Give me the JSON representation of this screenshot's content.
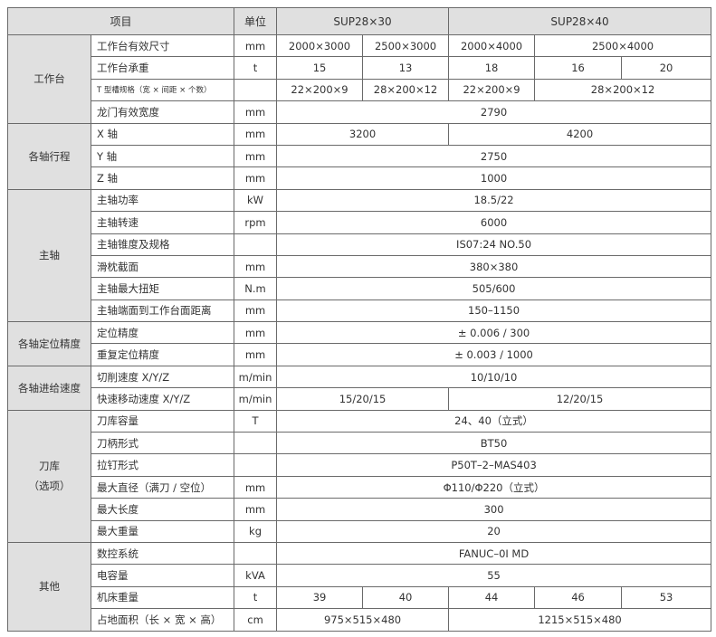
{
  "header": {
    "item": "项目",
    "unit": "单位",
    "model_a": "SUP28×30",
    "model_b": "SUP28×40"
  },
  "groups": [
    {
      "name": [
        "工作台"
      ],
      "rows": [
        {
          "label": "工作台有效尺寸",
          "unit": "mm",
          "cells": [
            {
              "v": "2000×3000",
              "span": 1
            },
            {
              "v": "2500×3000",
              "span": 1
            },
            {
              "v": "2000×4000",
              "span": 1
            },
            {
              "v": "2500×4000",
              "span": 2
            }
          ]
        },
        {
          "label": "工作台承重",
          "unit": "t",
          "cells": [
            {
              "v": "15",
              "span": 1
            },
            {
              "v": "13",
              "span": 1
            },
            {
              "v": "18",
              "span": 1
            },
            {
              "v": "16",
              "span": 1
            },
            {
              "v": "20",
              "span": 1
            }
          ]
        },
        {
          "label": "T 型槽规格（宽 × 间距 × 个数）",
          "unit": "",
          "small": true,
          "cells": [
            {
              "v": "22×200×9",
              "span": 1
            },
            {
              "v": "28×200×12",
              "span": 1
            },
            {
              "v": "22×200×9",
              "span": 1
            },
            {
              "v": "28×200×12",
              "span": 2
            }
          ]
        },
        {
          "label": "龙门有效宽度",
          "unit": "mm",
          "cells": [
            {
              "v": "2790",
              "span": 5
            }
          ]
        }
      ]
    },
    {
      "name": [
        "各轴行程"
      ],
      "rows": [
        {
          "label": "X 轴",
          "unit": "mm",
          "cells": [
            {
              "v": "3200",
              "span": 2
            },
            {
              "v": "4200",
              "span": 3
            }
          ]
        },
        {
          "label": "Y 轴",
          "unit": "mm",
          "cells": [
            {
              "v": "2750",
              "span": 5
            }
          ]
        },
        {
          "label": "Z 轴",
          "unit": "mm",
          "cells": [
            {
              "v": "1000",
              "span": 5
            }
          ]
        }
      ]
    },
    {
      "name": [
        "主轴"
      ],
      "rows": [
        {
          "label": "主轴功率",
          "unit": "kW",
          "cells": [
            {
              "v": "18.5/22",
              "span": 5
            }
          ]
        },
        {
          "label": "主轴转速",
          "unit": "rpm",
          "cells": [
            {
              "v": "6000",
              "span": 5
            }
          ]
        },
        {
          "label": "主轴锥度及规格",
          "unit": "",
          "cells": [
            {
              "v": "IS07:24  NO.50",
              "span": 5
            }
          ]
        },
        {
          "label": "滑枕截面",
          "unit": "mm",
          "cells": [
            {
              "v": "380×380",
              "span": 5
            }
          ]
        },
        {
          "label": "主轴最大扭矩",
          "unit": "N.m",
          "cells": [
            {
              "v": "505/600",
              "span": 5
            }
          ]
        },
        {
          "label": "主轴端面到工作台面距离",
          "unit": "mm",
          "cells": [
            {
              "v": "150–1150",
              "span": 5
            }
          ]
        }
      ]
    },
    {
      "name": [
        "各轴定位精度"
      ],
      "rows": [
        {
          "label": "定位精度",
          "unit": "mm",
          "cells": [
            {
              "v": "± 0.006  /  300",
              "span": 5
            }
          ]
        },
        {
          "label": "重复定位精度",
          "unit": "mm",
          "cells": [
            {
              "v": "± 0.003  /  1000",
              "span": 5
            }
          ]
        }
      ]
    },
    {
      "name": [
        "各轴进给速度"
      ],
      "rows": [
        {
          "label": "切削速度 X/Y/Z",
          "unit": "m/min",
          "cells": [
            {
              "v": "10/10/10",
              "span": 5
            }
          ]
        },
        {
          "label": "快速移动速度 X/Y/Z",
          "unit": "m/min",
          "cells": [
            {
              "v": "15/20/15",
              "span": 2
            },
            {
              "v": "12/20/15",
              "span": 3
            }
          ]
        }
      ]
    },
    {
      "name": [
        "刀库",
        "（选项）"
      ],
      "rows": [
        {
          "label": "刀库容量",
          "unit": "T",
          "cells": [
            {
              "v": "24、40（立式）",
              "span": 5
            }
          ]
        },
        {
          "label": "刀柄形式",
          "unit": "",
          "cells": [
            {
              "v": "BT50",
              "span": 5
            }
          ]
        },
        {
          "label": "拉钉形式",
          "unit": "",
          "cells": [
            {
              "v": "P50T–2–MAS403",
              "span": 5
            }
          ]
        },
        {
          "label": "最大直径（满刀 / 空位）",
          "unit": "mm",
          "cells": [
            {
              "v": "Φ110/Φ220（立式）",
              "span": 5
            }
          ]
        },
        {
          "label": "最大长度",
          "unit": "mm",
          "cells": [
            {
              "v": "300",
              "span": 5
            }
          ]
        },
        {
          "label": "最大重量",
          "unit": "kg",
          "cells": [
            {
              "v": "20",
              "span": 5
            }
          ]
        }
      ]
    },
    {
      "name": [
        "其他"
      ],
      "rows": [
        {
          "label": "数控系统",
          "unit": "",
          "cells": [
            {
              "v": "FANUC–0I MD",
              "span": 5
            }
          ]
        },
        {
          "label": "电容量",
          "unit": "kVA",
          "cells": [
            {
              "v": "55",
              "span": 5
            }
          ]
        },
        {
          "label": "机床重量",
          "unit": "t",
          "cells": [
            {
              "v": "39",
              "span": 1
            },
            {
              "v": "40",
              "span": 1
            },
            {
              "v": "44",
              "span": 1
            },
            {
              "v": "46",
              "span": 1
            },
            {
              "v": "53",
              "span": 1
            }
          ]
        },
        {
          "label": "占地面积（长 × 宽 × 高）",
          "unit": "cm",
          "cells": [
            {
              "v": "975×515×480",
              "span": 2
            },
            {
              "v": "1215×515×480",
              "span": 3
            }
          ]
        }
      ]
    }
  ]
}
